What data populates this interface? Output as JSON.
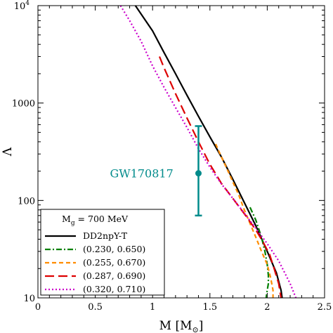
{
  "chart_data": {
    "type": "line",
    "xlabel": "M [M",
    "xlabel_sub": "⊙",
    "xlabel_close": "]",
    "ylabel": "Λ",
    "xlim": [
      0,
      2.5
    ],
    "ylim": [
      10,
      10000
    ],
    "yscale": "log",
    "x_ticks": [
      "0",
      "0.5",
      "1",
      "1.5",
      "2",
      "2.5"
    ],
    "y_ticks": [
      {
        "value": 10,
        "label": "10"
      },
      {
        "value": 100,
        "label": "100"
      },
      {
        "value": 1000,
        "label": "1000"
      },
      {
        "value": 10000,
        "label": "10",
        "sup": "4"
      }
    ],
    "legend": {
      "title": "M",
      "title_sub": "g",
      "title_rest": " = 700 MeV",
      "placement": "lower-left"
    },
    "series": [
      {
        "name": "DD2npY-T",
        "color": "#000000",
        "dash": "solid",
        "points": [
          [
            0.85,
            10000
          ],
          [
            1.0,
            5500
          ],
          [
            1.1,
            3300
          ],
          [
            1.2,
            2000
          ],
          [
            1.3,
            1200
          ],
          [
            1.4,
            730
          ],
          [
            1.5,
            450
          ],
          [
            1.6,
            280
          ],
          [
            1.7,
            165
          ],
          [
            1.8,
            95
          ],
          [
            1.9,
            55
          ],
          [
            2.0,
            30
          ],
          [
            2.08,
            18
          ],
          [
            2.12,
            12
          ],
          [
            2.13,
            10
          ]
        ]
      },
      {
        "name": "(0.230, 0.650)",
        "color": "#008000",
        "dash": "dashdot",
        "points": [
          [
            1.85,
            85
          ],
          [
            1.9,
            63
          ],
          [
            1.95,
            42
          ],
          [
            1.98,
            30
          ],
          [
            2.0,
            22
          ],
          [
            2.01,
            17
          ],
          [
            2.01,
            14
          ],
          [
            2.0,
            12
          ],
          [
            1.99,
            10
          ]
        ]
      },
      {
        "name": "(0.255, 0.670)",
        "color": "#ff8c00",
        "dash": "dash",
        "points": [
          [
            1.55,
            380
          ],
          [
            1.6,
            280
          ],
          [
            1.65,
            210
          ],
          [
            1.7,
            155
          ],
          [
            1.75,
            115
          ],
          [
            1.8,
            80
          ],
          [
            1.85,
            58
          ],
          [
            1.9,
            42
          ],
          [
            1.95,
            30
          ],
          [
            2.0,
            22
          ],
          [
            2.03,
            16
          ],
          [
            2.05,
            12
          ],
          [
            2.05,
            10
          ]
        ]
      },
      {
        "name": "(0.287, 0.690)",
        "color": "#dd0000",
        "dash": "longdash",
        "points": [
          [
            1.06,
            3000
          ],
          [
            1.1,
            2300
          ],
          [
            1.2,
            1250
          ],
          [
            1.3,
            700
          ],
          [
            1.4,
            400
          ],
          [
            1.5,
            235
          ],
          [
            1.6,
            150
          ],
          [
            1.7,
            105
          ],
          [
            1.8,
            73
          ],
          [
            1.9,
            50
          ],
          [
            1.96,
            38
          ],
          [
            2.02,
            28
          ],
          [
            2.06,
            20
          ],
          [
            2.1,
            14
          ],
          [
            2.12,
            10
          ]
        ]
      },
      {
        "name": "(0.320, 0.710)",
        "color": "#cc00cc",
        "dash": "dot",
        "points": [
          [
            0.72,
            10000
          ],
          [
            0.8,
            7000
          ],
          [
            0.9,
            4300
          ],
          [
            1.0,
            2400
          ],
          [
            1.1,
            1450
          ],
          [
            1.2,
            900
          ],
          [
            1.3,
            560
          ],
          [
            1.4,
            340
          ],
          [
            1.5,
            220
          ],
          [
            1.6,
            148
          ],
          [
            1.7,
            105
          ],
          [
            1.8,
            74
          ],
          [
            1.9,
            52
          ],
          [
            2.0,
            36
          ],
          [
            2.1,
            24
          ],
          [
            2.2,
            14
          ],
          [
            2.25,
            10
          ]
        ]
      }
    ],
    "annotation": {
      "label": "GW170817",
      "color": "#008b8b",
      "x": 1.4,
      "y": 190,
      "y_low": 70,
      "y_high": 580
    }
  }
}
